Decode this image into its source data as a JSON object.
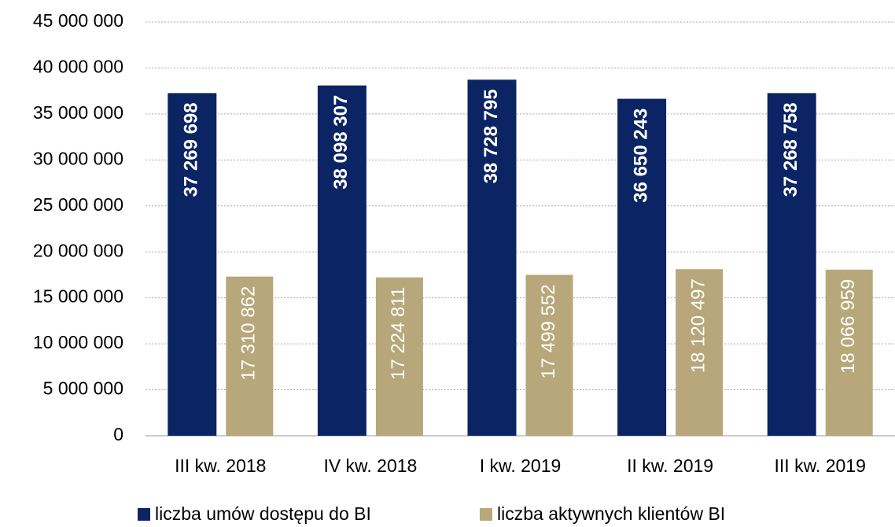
{
  "chart_data": {
    "type": "bar",
    "categories": [
      "III kw. 2018",
      "IV kw. 2018",
      "I kw. 2019",
      "II kw. 2019",
      "III kw. 2019"
    ],
    "series": [
      {
        "name": "liczba umów dostępu do BI",
        "color": "#0b2463",
        "values": [
          37269698,
          38098307,
          38728795,
          36650243,
          37268758
        ],
        "value_labels": [
          "37 269 698",
          "38 098 307",
          "38 728 795",
          "36 650 243",
          "37 268 758"
        ]
      },
      {
        "name": "liczba aktywnych klientów BI",
        "color": "#b8a77a",
        "values": [
          17310862,
          17224811,
          17499552,
          18120497,
          18066959
        ],
        "value_labels": [
          "17 310 862",
          "17 224 811",
          "17 499 552",
          "18 120 497",
          "18 066 959"
        ]
      }
    ],
    "ylim": [
      0,
      45000000
    ],
    "yticks": [
      {
        "value": 0,
        "label": "0"
      },
      {
        "value": 5000000,
        "label": "5 000 000"
      },
      {
        "value": 10000000,
        "label": "10 000 000"
      },
      {
        "value": 15000000,
        "label": "15 000 000"
      },
      {
        "value": 20000000,
        "label": "20 000 000"
      },
      {
        "value": 25000000,
        "label": "25 000 000"
      },
      {
        "value": 30000000,
        "label": "30 000 000"
      },
      {
        "value": 35000000,
        "label": "35 000 000"
      },
      {
        "value": 40000000,
        "label": "40 000 000"
      },
      {
        "value": 45000000,
        "label": "45 000 000"
      }
    ],
    "grid": true,
    "legend": "bottom"
  }
}
